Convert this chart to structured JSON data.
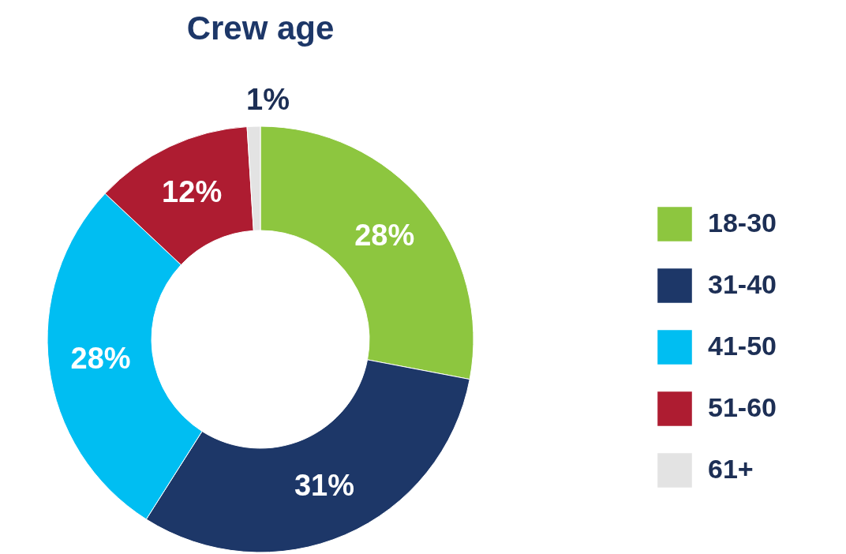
{
  "chart_data": {
    "type": "donut",
    "title": "Crew age",
    "categories": [
      "18-30",
      "31-40",
      "41-50",
      "51-60",
      "61+"
    ],
    "values": [
      28,
      31,
      28,
      12,
      1
    ],
    "colors": [
      "#8dc63f",
      "#1d3768",
      "#00bef2",
      "#ae1c31",
      "#e3e3e3"
    ],
    "value_labels": [
      "28%",
      "31%",
      "28%",
      "12%",
      "1%"
    ],
    "legend": "right"
  }
}
